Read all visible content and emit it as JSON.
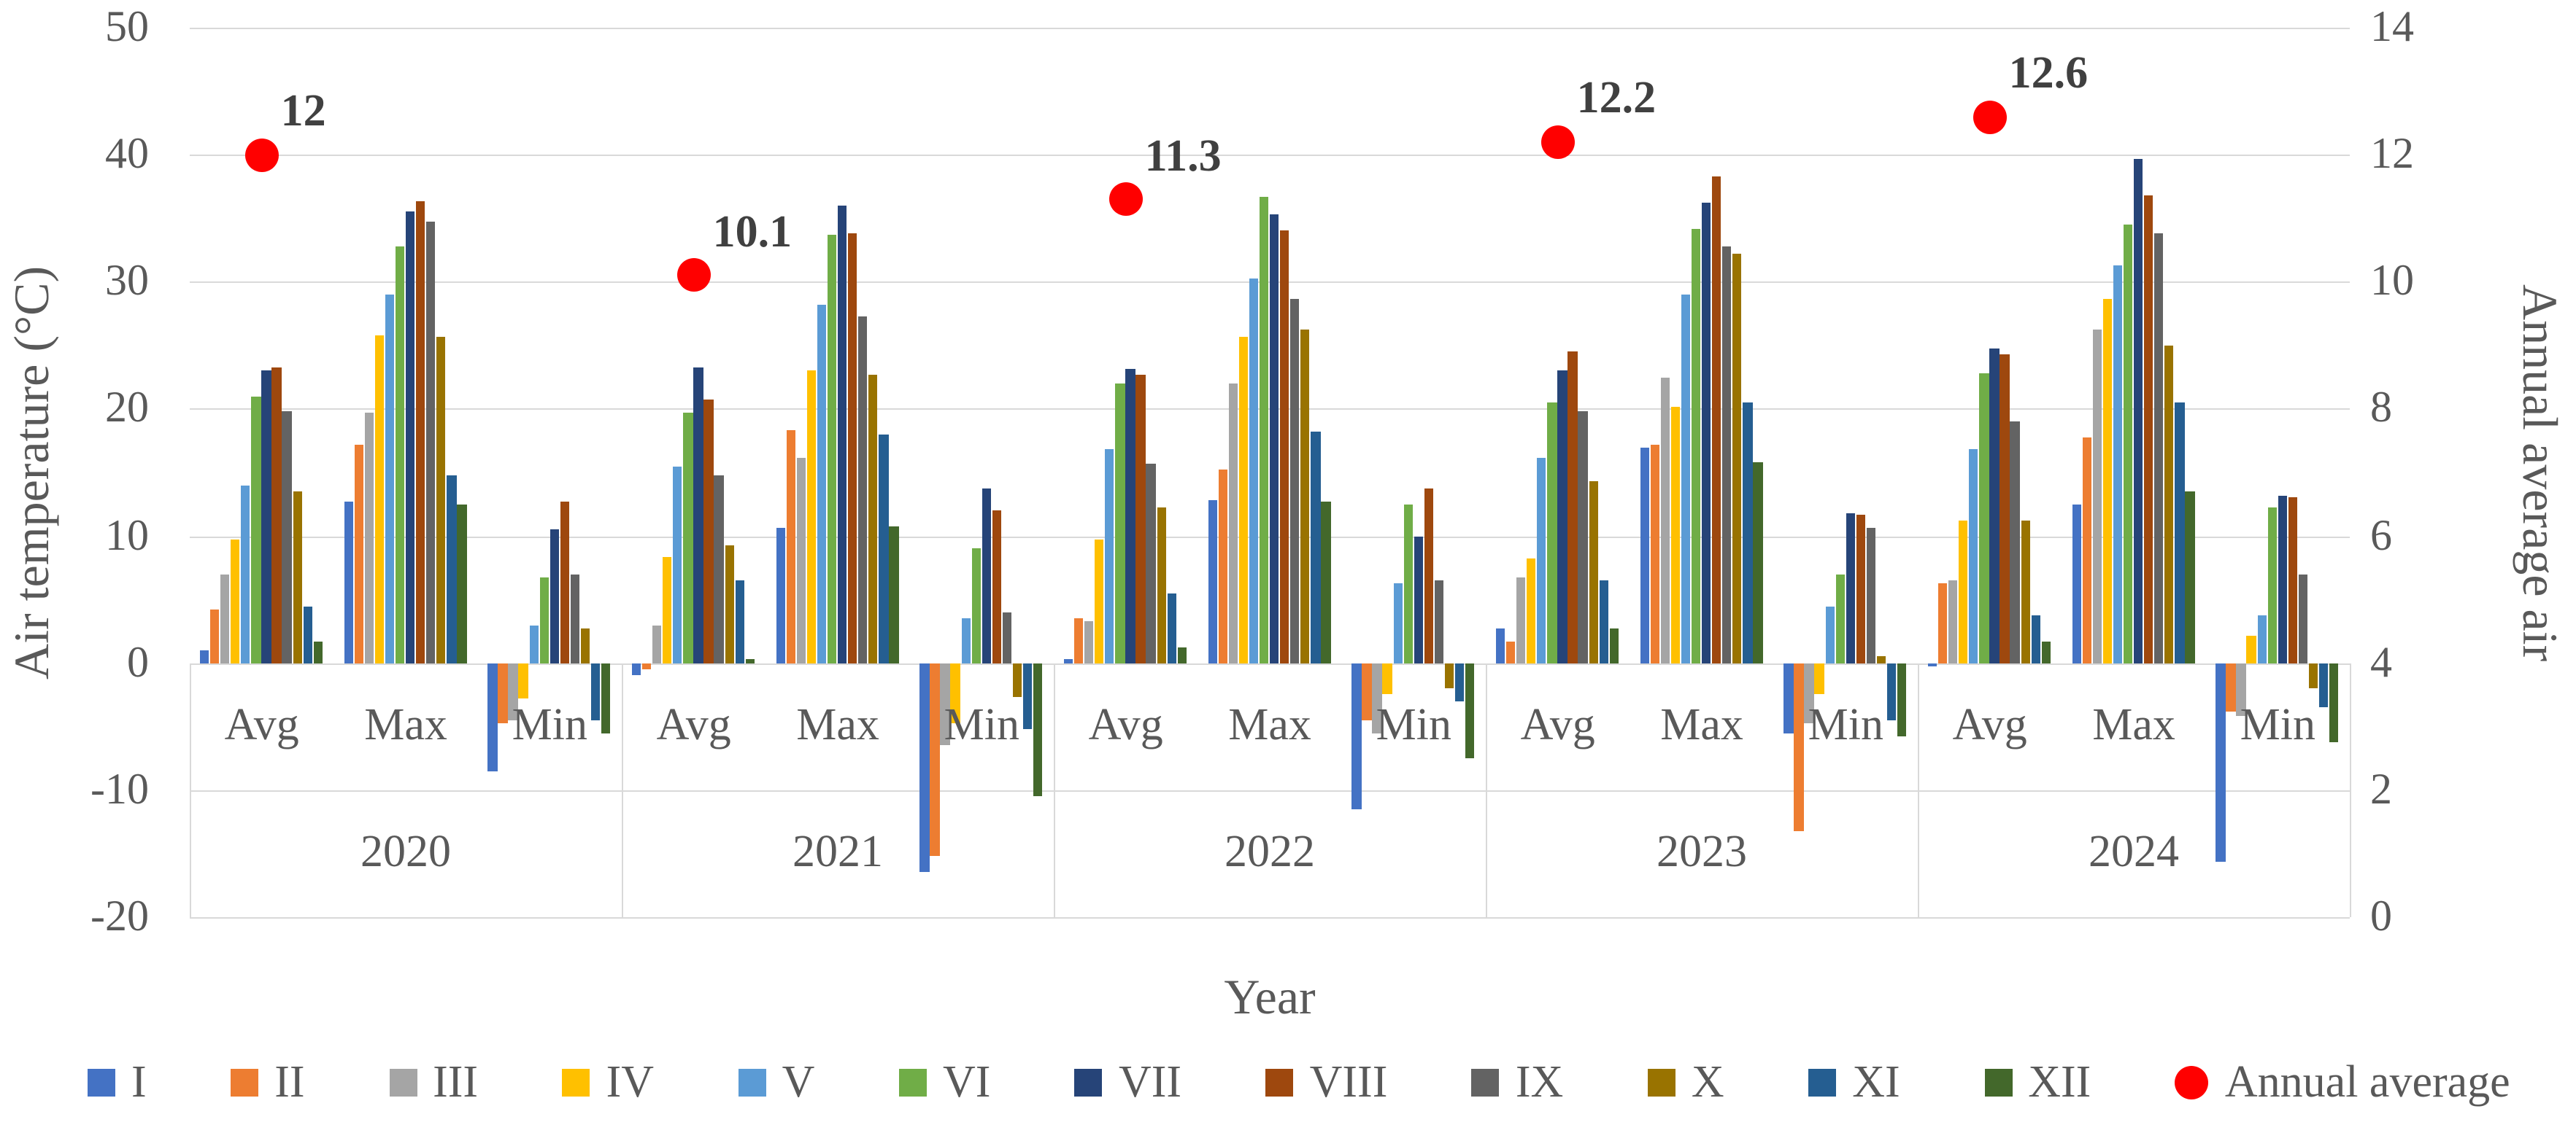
{
  "chart_data": {
    "type": "bar",
    "xlabel": "Year",
    "axes": {
      "left": {
        "title": "Air temperature (°C)",
        "min": -20,
        "max": 50,
        "ticks": [
          50,
          40,
          30,
          20,
          10,
          0,
          -10,
          -20
        ]
      },
      "right": {
        "title": "Annual average air",
        "min": 0,
        "max": 14,
        "ticks": [
          14,
          12,
          10,
          8,
          6,
          4,
          2,
          0
        ]
      }
    },
    "years": [
      "2020",
      "2021",
      "2022",
      "2023",
      "2024"
    ],
    "stats": [
      "Avg",
      "Max",
      "Min"
    ],
    "grid": "horizontal",
    "legend_position": "bottom",
    "series": [
      {
        "name": "I",
        "color": "#4472C4",
        "values": [
          [
            1.0,
            12.7,
            -8.5
          ],
          [
            -1.0,
            10.7,
            -16.5
          ],
          [
            0.3,
            12.8,
            -11.5
          ],
          [
            2.7,
            17.0,
            -5.5
          ],
          [
            -0.3,
            12.5,
            -15.7
          ]
        ]
      },
      {
        "name": "II",
        "color": "#ED7D31",
        "values": [
          [
            4.2,
            17.2,
            -4.8
          ],
          [
            -0.5,
            18.3,
            -15.2
          ],
          [
            3.5,
            15.2,
            -4.5
          ],
          [
            1.7,
            17.2,
            -13.2
          ],
          [
            6.3,
            17.8,
            -3.8
          ]
        ]
      },
      {
        "name": "III",
        "color": "#A5A5A5",
        "values": [
          [
            7.0,
            19.7,
            -4.5
          ],
          [
            3.0,
            16.2,
            -6.5
          ],
          [
            3.3,
            22.0,
            -5.5
          ],
          [
            6.8,
            22.5,
            -4.8
          ],
          [
            6.5,
            26.2,
            -4.2
          ]
        ]
      },
      {
        "name": "IV",
        "color": "#FFC000",
        "values": [
          [
            9.7,
            25.8,
            -2.8
          ],
          [
            8.3,
            23.0,
            -4.8
          ],
          [
            9.7,
            25.7,
            -2.5
          ],
          [
            8.2,
            20.2,
            -2.5
          ],
          [
            11.2,
            28.7,
            2.2
          ]
        ]
      },
      {
        "name": "V",
        "color": "#5B9BD5",
        "values": [
          [
            14.0,
            29.0,
            3.0
          ],
          [
            15.5,
            28.2,
            3.5
          ],
          [
            16.8,
            30.3,
            6.3
          ],
          [
            16.2,
            29.0,
            4.5
          ],
          [
            16.8,
            31.3,
            3.8
          ]
        ]
      },
      {
        "name": "VI",
        "color": "#70AD47",
        "values": [
          [
            21.0,
            32.8,
            6.8
          ],
          [
            19.7,
            33.7,
            9.0
          ],
          [
            22.0,
            36.7,
            12.5
          ],
          [
            20.5,
            34.2,
            7.0
          ],
          [
            22.8,
            34.5,
            12.2
          ]
        ]
      },
      {
        "name": "VII",
        "color": "#264478",
        "values": [
          [
            23.0,
            35.5,
            10.5
          ],
          [
            23.3,
            36.0,
            13.7
          ],
          [
            23.2,
            35.3,
            10.0
          ],
          [
            23.0,
            36.2,
            11.8
          ],
          [
            24.8,
            39.7,
            13.2
          ]
        ]
      },
      {
        "name": "VIII",
        "color": "#9E480E",
        "values": [
          [
            23.3,
            36.3,
            12.7
          ],
          [
            20.8,
            33.8,
            12.0
          ],
          [
            22.7,
            34.0,
            13.7
          ],
          [
            24.5,
            38.3,
            11.7
          ],
          [
            24.3,
            36.8,
            13.0
          ]
        ]
      },
      {
        "name": "IX",
        "color": "#636363",
        "values": [
          [
            19.8,
            34.8,
            7.0
          ],
          [
            14.8,
            27.3,
            4.0
          ],
          [
            15.7,
            28.7,
            6.5
          ],
          [
            19.8,
            32.8,
            10.7
          ],
          [
            19.0,
            33.8,
            7.0
          ]
        ]
      },
      {
        "name": "X",
        "color": "#997300",
        "values": [
          [
            13.5,
            25.7,
            2.7
          ],
          [
            9.3,
            22.7,
            -2.7
          ],
          [
            12.3,
            26.3,
            -2.0
          ],
          [
            14.3,
            32.2,
            0.5
          ],
          [
            11.2,
            25.0,
            -2.0
          ]
        ]
      },
      {
        "name": "XI",
        "color": "#255E91",
        "values": [
          [
            4.5,
            14.8,
            -4.5
          ],
          [
            6.5,
            18.0,
            -5.2
          ],
          [
            5.5,
            18.2,
            -3.0
          ],
          [
            6.5,
            20.5,
            -4.5
          ],
          [
            3.8,
            20.5,
            -3.5
          ]
        ]
      },
      {
        "name": "XII",
        "color": "#43682B",
        "values": [
          [
            1.7,
            12.5,
            -5.5
          ],
          [
            0.3,
            10.8,
            -10.5
          ],
          [
            1.2,
            12.7,
            -7.5
          ],
          [
            2.7,
            15.8,
            -5.8
          ],
          [
            1.7,
            13.5,
            -6.2
          ]
        ]
      }
    ],
    "annual_average": {
      "name": "Annual average",
      "color": "#FF0000",
      "values": [
        12,
        10.1,
        11.3,
        12.2,
        12.6
      ],
      "labels": [
        "12",
        "10.1",
        "11.3",
        "12.2",
        "12.6"
      ]
    }
  }
}
